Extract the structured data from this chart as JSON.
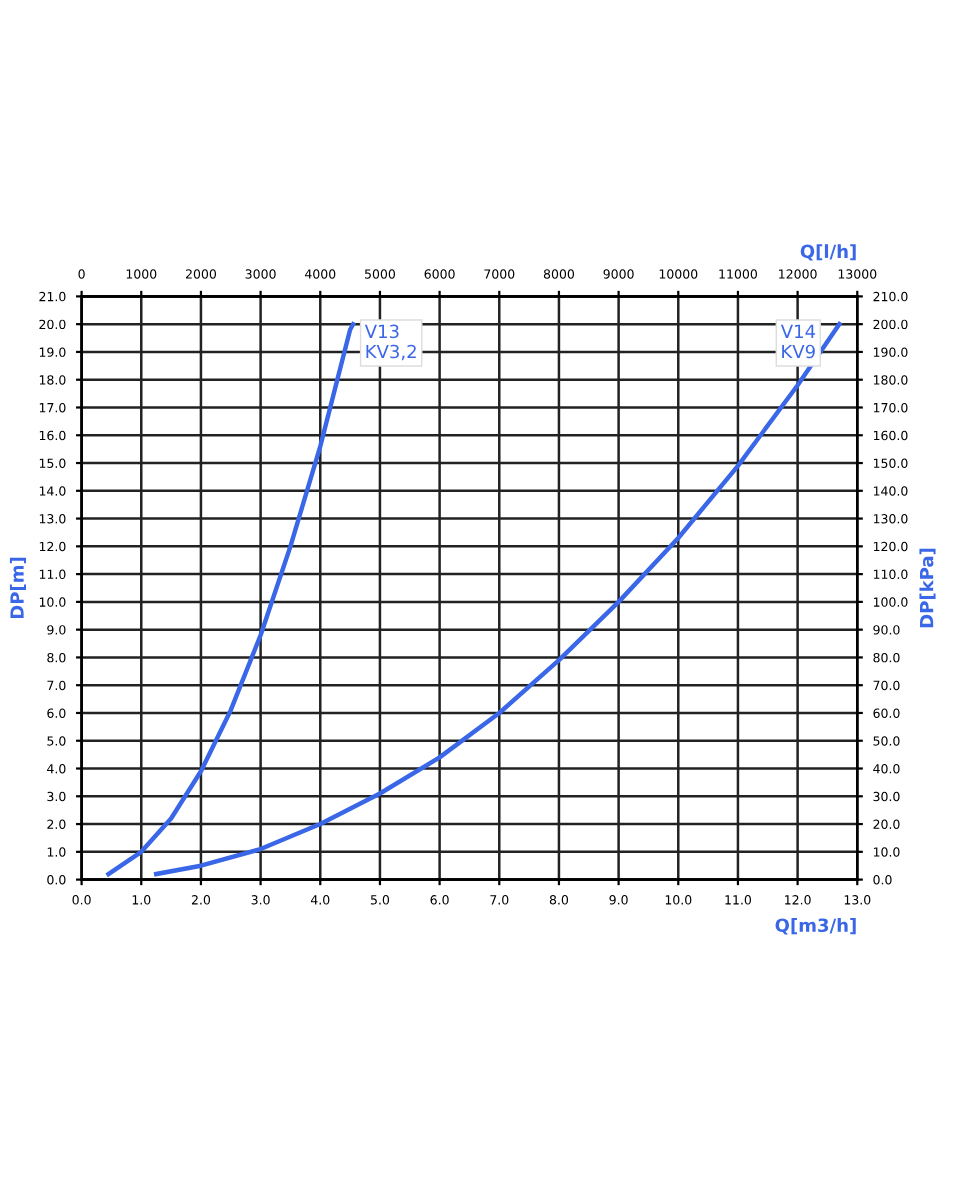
{
  "chart_data": {
    "type": "line",
    "xlabel": "Q[m3/h]",
    "ylabel": "DP[m]",
    "y2label": "DP[kPa]",
    "x2label": "Q[l/h]",
    "series": [
      {
        "name": "V13\nKV3,2",
        "color": "#3a66e8",
        "x": [
          0.45,
          1.0,
          1.5,
          2.0,
          2.5,
          3.0,
          3.5,
          4.0,
          4.5,
          4.55
        ],
        "values": [
          0.2,
          1.0,
          2.2,
          3.9,
          6.1,
          8.8,
          12.0,
          15.6,
          19.8,
          20.0
        ]
      },
      {
        "name": "V14\nKV9",
        "color": "#3a66e8",
        "x": [
          1.25,
          2,
          3,
          4,
          5,
          6,
          7,
          8,
          9,
          10,
          11,
          12,
          12.7
        ],
        "values": [
          0.2,
          0.5,
          1.1,
          2.0,
          3.1,
          4.4,
          6.0,
          7.9,
          10.0,
          12.3,
          14.9,
          17.8,
          20.0
        ]
      }
    ],
    "xlim": [
      0,
      13
    ],
    "xticks": [
      {
        "value": 0,
        "label": "0.0"
      },
      {
        "value": 1,
        "label": "1.0"
      },
      {
        "value": 2,
        "label": "2.0"
      },
      {
        "value": 3,
        "label": "3.0"
      },
      {
        "value": 4,
        "label": "4.0"
      },
      {
        "value": 5,
        "label": "5.0"
      },
      {
        "value": 6,
        "label": "6.0"
      },
      {
        "value": 7,
        "label": "7.0"
      },
      {
        "value": 8,
        "label": "8.0"
      },
      {
        "value": 9,
        "label": "9.0"
      },
      {
        "value": 10,
        "label": "10.0"
      },
      {
        "value": 11,
        "label": "11.0"
      },
      {
        "value": 12,
        "label": "12.0"
      },
      {
        "value": 13,
        "label": "13.0"
      }
    ],
    "x2lim": [
      0,
      13000
    ],
    "x2ticks": [
      0,
      1000,
      2000,
      3000,
      4000,
      5000,
      6000,
      7000,
      8000,
      9000,
      10000,
      11000,
      12000,
      13000
    ],
    "ylim": [
      0,
      21
    ],
    "yticks": [
      {
        "value": 0,
        "label": "0.0"
      },
      {
        "value": 1,
        "label": "1.0"
      },
      {
        "value": 2,
        "label": "2.0"
      },
      {
        "value": 3,
        "label": "3.0"
      },
      {
        "value": 4,
        "label": "4.0"
      },
      {
        "value": 5,
        "label": "5.0"
      },
      {
        "value": 6,
        "label": "6.0"
      },
      {
        "value": 7,
        "label": "7.0"
      },
      {
        "value": 8,
        "label": "8.0"
      },
      {
        "value": 9,
        "label": "9.0"
      },
      {
        "value": 10,
        "label": "10.0"
      },
      {
        "value": 11,
        "label": "11.0"
      },
      {
        "value": 12,
        "label": "12.0"
      },
      {
        "value": 13,
        "label": "13.0"
      },
      {
        "value": 14,
        "label": "14.0"
      },
      {
        "value": 15,
        "label": "15.0"
      },
      {
        "value": 16,
        "label": "16.0"
      },
      {
        "value": 17,
        "label": "17.0"
      },
      {
        "value": 18,
        "label": "18.0"
      },
      {
        "value": 19,
        "label": "19.0"
      },
      {
        "value": 20,
        "label": "20.0"
      },
      {
        "value": 21,
        "label": "21.0"
      }
    ],
    "y2lim": [
      0,
      210
    ],
    "y2ticks": [
      {
        "value": 0,
        "label": "0.0"
      },
      {
        "value": 10,
        "label": "10.0"
      },
      {
        "value": 20,
        "label": "20.0"
      },
      {
        "value": 30,
        "label": "30.0"
      },
      {
        "value": 40,
        "label": "40.0"
      },
      {
        "value": 50,
        "label": "50.0"
      },
      {
        "value": 60,
        "label": "60.0"
      },
      {
        "value": 70,
        "label": "70.0"
      },
      {
        "value": 80,
        "label": "80.0"
      },
      {
        "value": 90,
        "label": "90.0"
      },
      {
        "value": 100,
        "label": "100.0"
      },
      {
        "value": 110,
        "label": "110.0"
      },
      {
        "value": 120,
        "label": "120.0"
      },
      {
        "value": 130,
        "label": "130.0"
      },
      {
        "value": 140,
        "label": "140.0"
      },
      {
        "value": 150,
        "label": "150.0"
      },
      {
        "value": 160,
        "label": "160.0"
      },
      {
        "value": 170,
        "label": "170.0"
      },
      {
        "value": 180,
        "label": "180.0"
      },
      {
        "value": 190,
        "label": "190.0"
      },
      {
        "value": 200,
        "label": "200.0"
      },
      {
        "value": 210,
        "label": "210.0"
      }
    ],
    "grid": true,
    "legend": false,
    "marker": "none",
    "line_style": "solid"
  }
}
